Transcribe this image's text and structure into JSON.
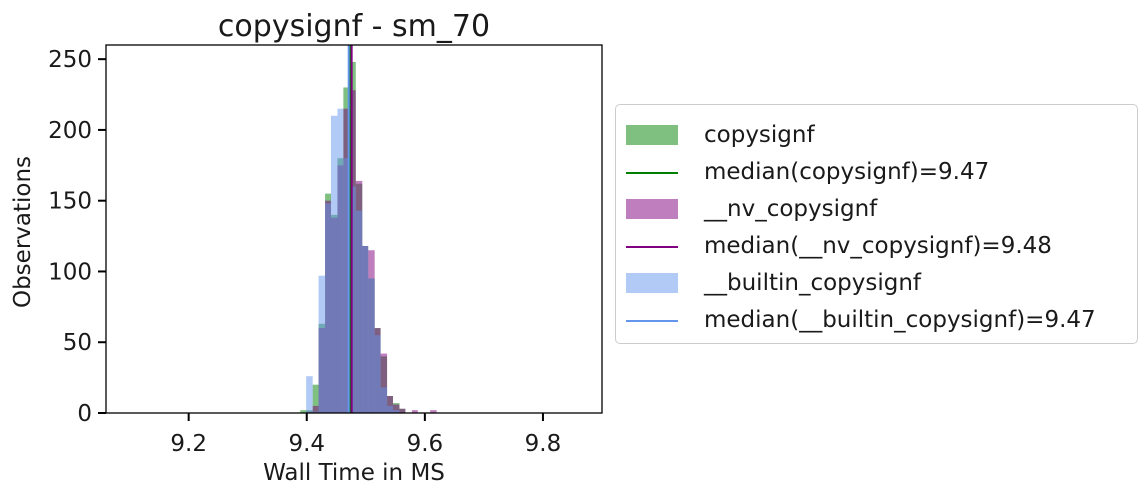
{
  "chart_data": {
    "type": "histogram",
    "title": "copysignf - sm_70",
    "xlabel": "Wall Time in MS",
    "ylabel": "Observations",
    "xlim": [
      9.06,
      9.9
    ],
    "ylim": [
      0,
      260
    ],
    "xticks": [
      "9.2",
      "9.4",
      "9.6",
      "9.8"
    ],
    "xtick_values": [
      9.2,
      9.4,
      9.6,
      9.8
    ],
    "yticks": [
      "0",
      "50",
      "100",
      "150",
      "200",
      "250"
    ],
    "ytick_values": [
      0,
      50,
      100,
      150,
      200,
      250
    ],
    "grid": false,
    "legend_position": "outside-right",
    "bin_width": 0.0105,
    "series": [
      {
        "name": "copysignf",
        "color": "#008000",
        "opacity": 0.5,
        "bins": [
          {
            "x0": 9.389,
            "x1": 9.41,
            "count": 2
          },
          {
            "x0": 9.41,
            "x1": 9.42,
            "count": 20
          },
          {
            "x0": 9.42,
            "x1": 9.431,
            "count": 63
          },
          {
            "x0": 9.431,
            "x1": 9.441,
            "count": 155
          },
          {
            "x0": 9.441,
            "x1": 9.452,
            "count": 140
          },
          {
            "x0": 9.452,
            "x1": 9.462,
            "count": 180
          },
          {
            "x0": 9.462,
            "x1": 9.473,
            "count": 230
          },
          {
            "x0": 9.473,
            "x1": 9.483,
            "count": 248
          },
          {
            "x0": 9.483,
            "x1": 9.494,
            "count": 162
          },
          {
            "x0": 9.494,
            "x1": 9.504,
            "count": 118
          },
          {
            "x0": 9.504,
            "x1": 9.515,
            "count": 95
          },
          {
            "x0": 9.515,
            "x1": 9.525,
            "count": 60
          },
          {
            "x0": 9.525,
            "x1": 9.536,
            "count": 40
          },
          {
            "x0": 9.536,
            "x1": 9.546,
            "count": 12
          },
          {
            "x0": 9.546,
            "x1": 9.557,
            "count": 7
          },
          {
            "x0": 9.557,
            "x1": 9.567,
            "count": 3
          }
        ]
      },
      {
        "name": "__nv_copysignf",
        "color": "#800080",
        "opacity": 0.5,
        "bins": [
          {
            "x0": 9.399,
            "x1": 9.41,
            "count": 1
          },
          {
            "x0": 9.41,
            "x1": 9.42,
            "count": 5
          },
          {
            "x0": 9.42,
            "x1": 9.431,
            "count": 60
          },
          {
            "x0": 9.431,
            "x1": 9.441,
            "count": 150
          },
          {
            "x0": 9.441,
            "x1": 9.452,
            "count": 138
          },
          {
            "x0": 9.452,
            "x1": 9.462,
            "count": 175
          },
          {
            "x0": 9.462,
            "x1": 9.473,
            "count": 215
          },
          {
            "x0": 9.473,
            "x1": 9.483,
            "count": 228
          },
          {
            "x0": 9.483,
            "x1": 9.494,
            "count": 164
          },
          {
            "x0": 9.494,
            "x1": 9.504,
            "count": 118
          },
          {
            "x0": 9.504,
            "x1": 9.515,
            "count": 115
          },
          {
            "x0": 9.515,
            "x1": 9.525,
            "count": 60
          },
          {
            "x0": 9.525,
            "x1": 9.536,
            "count": 42
          },
          {
            "x0": 9.536,
            "x1": 9.546,
            "count": 12
          },
          {
            "x0": 9.546,
            "x1": 9.557,
            "count": 6
          },
          {
            "x0": 9.557,
            "x1": 9.567,
            "count": 3
          },
          {
            "x0": 9.578,
            "x1": 9.588,
            "count": 2
          },
          {
            "x0": 9.609,
            "x1": 9.62,
            "count": 2
          }
        ]
      },
      {
        "name": "__builtin_copysignf",
        "color": "#6495ED",
        "opacity": 0.5,
        "bins": [
          {
            "x0": 9.399,
            "x1": 9.41,
            "count": 26
          },
          {
            "x0": 9.41,
            "x1": 9.42,
            "count": 1
          },
          {
            "x0": 9.42,
            "x1": 9.431,
            "count": 97
          },
          {
            "x0": 9.431,
            "x1": 9.441,
            "count": 148
          },
          {
            "x0": 9.441,
            "x1": 9.452,
            "count": 210
          },
          {
            "x0": 9.452,
            "x1": 9.462,
            "count": 215
          },
          {
            "x0": 9.462,
            "x1": 9.473,
            "count": 180
          },
          {
            "x0": 9.473,
            "x1": 9.483,
            "count": 160
          },
          {
            "x0": 9.483,
            "x1": 9.494,
            "count": 143
          },
          {
            "x0": 9.494,
            "x1": 9.504,
            "count": 118
          },
          {
            "x0": 9.504,
            "x1": 9.515,
            "count": 95
          },
          {
            "x0": 9.515,
            "x1": 9.525,
            "count": 55
          },
          {
            "x0": 9.525,
            "x1": 9.536,
            "count": 18
          },
          {
            "x0": 9.536,
            "x1": 9.546,
            "count": 5
          },
          {
            "x0": 9.546,
            "x1": 9.557,
            "count": 2
          }
        ]
      }
    ],
    "medians": [
      {
        "name": "median(copysignf)=9.47",
        "value": 9.474,
        "color": "#008000"
      },
      {
        "name": "median(__nv_copysignf)=9.48",
        "value": 9.476,
        "color": "#800080"
      },
      {
        "name": "median(__builtin_copysignf)=9.47",
        "value": 9.471,
        "color": "#6495ED"
      }
    ]
  },
  "legend": {
    "items": [
      {
        "label": "copysignf",
        "kind": "patch",
        "color": "#008000"
      },
      {
        "label": "median(copysignf)=9.47",
        "kind": "line",
        "color": "#008000"
      },
      {
        "label": "__nv_copysignf",
        "kind": "patch",
        "color": "#800080"
      },
      {
        "label": "median(__nv_copysignf)=9.48",
        "kind": "line",
        "color": "#800080"
      },
      {
        "label": "__builtin_copysignf",
        "kind": "patch",
        "color": "#6495ED"
      },
      {
        "label": "median(__builtin_copysignf)=9.47",
        "kind": "line",
        "color": "#6495ED"
      }
    ]
  }
}
